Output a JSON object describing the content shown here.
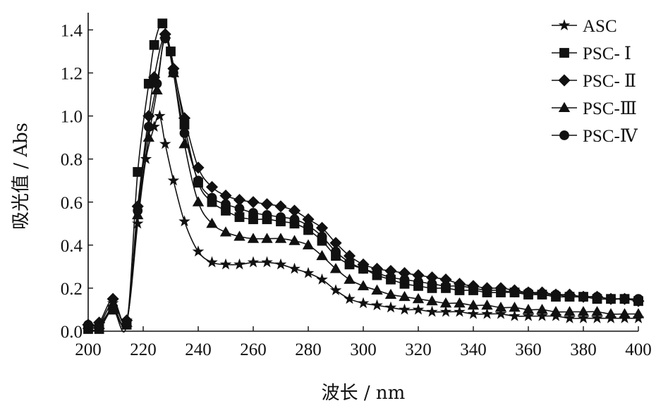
{
  "chart_data": {
    "type": "line",
    "xlabel": "波长 / nm",
    "ylabel": "吸光值 / Abs",
    "xlim": [
      200,
      400
    ],
    "ylim": [
      0,
      1.48
    ],
    "xticks": [
      200,
      220,
      240,
      260,
      280,
      300,
      320,
      340,
      360,
      380,
      400
    ],
    "yticks": [
      0.0,
      0.2,
      0.4,
      0.6,
      0.8,
      1.0,
      1.2,
      1.4
    ],
    "ytick_labels": [
      "0.0",
      "0.2",
      "0.4",
      "0.6",
      "0.8",
      "1.0",
      "1.2",
      "1.4"
    ],
    "legend_position": "top-right",
    "grid": false,
    "series": [
      {
        "name": "ASC",
        "marker": "star",
        "x": [
          200,
          204,
          209,
          214,
          218,
          221,
          224,
          226,
          228,
          231,
          235,
          240,
          245,
          250,
          255,
          260,
          265,
          270,
          275,
          280,
          285,
          290,
          295,
          300,
          305,
          310,
          315,
          320,
          325,
          330,
          335,
          340,
          345,
          350,
          355,
          360,
          365,
          370,
          375,
          380,
          385,
          390,
          395,
          400
        ],
        "y": [
          0.02,
          0.03,
          0.13,
          0.05,
          0.5,
          0.8,
          0.95,
          1.0,
          0.87,
          0.7,
          0.51,
          0.37,
          0.32,
          0.31,
          0.31,
          0.32,
          0.32,
          0.31,
          0.29,
          0.27,
          0.24,
          0.19,
          0.15,
          0.13,
          0.12,
          0.11,
          0.1,
          0.1,
          0.09,
          0.09,
          0.09,
          0.08,
          0.08,
          0.08,
          0.07,
          0.07,
          0.07,
          0.07,
          0.06,
          0.06,
          0.06,
          0.06,
          0.06,
          0.06
        ]
      },
      {
        "name": "PSC- Ⅰ",
        "marker": "square",
        "x": [
          200,
          204,
          209,
          214,
          218,
          222,
          224,
          227,
          230,
          235,
          240,
          245,
          250,
          255,
          260,
          265,
          270,
          275,
          280,
          285,
          290,
          295,
          300,
          305,
          310,
          315,
          320,
          325,
          330,
          335,
          340,
          345,
          350,
          355,
          360,
          365,
          370,
          375,
          380,
          385,
          390,
          395,
          400
        ],
        "y": [
          0.01,
          0.01,
          0.1,
          0.03,
          0.74,
          1.15,
          1.33,
          1.43,
          1.3,
          0.96,
          0.69,
          0.6,
          0.56,
          0.53,
          0.52,
          0.52,
          0.51,
          0.5,
          0.47,
          0.42,
          0.35,
          0.31,
          0.29,
          0.26,
          0.24,
          0.22,
          0.21,
          0.2,
          0.2,
          0.19,
          0.19,
          0.18,
          0.18,
          0.18,
          0.17,
          0.17,
          0.16,
          0.16,
          0.16,
          0.15,
          0.15,
          0.15,
          0.14
        ]
      },
      {
        "name": "PSC- Ⅱ",
        "marker": "diamond",
        "x": [
          200,
          204,
          209,
          214,
          218,
          222,
          224,
          228,
          231,
          235,
          240,
          245,
          250,
          255,
          260,
          265,
          270,
          275,
          280,
          285,
          290,
          295,
          300,
          305,
          310,
          315,
          320,
          325,
          330,
          335,
          340,
          345,
          350,
          355,
          360,
          365,
          370,
          375,
          380,
          385,
          390,
          395,
          400
        ],
        "y": [
          0.03,
          0.04,
          0.15,
          0.05,
          0.58,
          1.0,
          1.18,
          1.38,
          1.22,
          0.99,
          0.76,
          0.67,
          0.63,
          0.61,
          0.6,
          0.59,
          0.58,
          0.56,
          0.52,
          0.48,
          0.41,
          0.35,
          0.31,
          0.29,
          0.28,
          0.27,
          0.26,
          0.25,
          0.24,
          0.22,
          0.21,
          0.2,
          0.2,
          0.19,
          0.18,
          0.18,
          0.17,
          0.17,
          0.16,
          0.16,
          0.15,
          0.15,
          0.14
        ]
      },
      {
        "name": "PSC-Ⅲ",
        "marker": "triangle",
        "x": [
          200,
          204,
          209,
          214,
          218,
          222,
          225,
          228,
          231,
          235,
          240,
          245,
          250,
          255,
          260,
          265,
          270,
          275,
          280,
          285,
          290,
          295,
          300,
          305,
          310,
          315,
          320,
          325,
          330,
          335,
          340,
          345,
          350,
          355,
          360,
          365,
          370,
          375,
          380,
          385,
          390,
          395,
          400
        ],
        "y": [
          0.03,
          0.03,
          0.1,
          0.04,
          0.54,
          0.9,
          1.12,
          1.38,
          1.2,
          0.87,
          0.6,
          0.5,
          0.46,
          0.44,
          0.43,
          0.43,
          0.43,
          0.42,
          0.4,
          0.35,
          0.29,
          0.24,
          0.21,
          0.19,
          0.17,
          0.16,
          0.15,
          0.14,
          0.13,
          0.13,
          0.12,
          0.12,
          0.11,
          0.11,
          0.1,
          0.1,
          0.09,
          0.09,
          0.09,
          0.09,
          0.08,
          0.08,
          0.08
        ]
      },
      {
        "name": "PSC-Ⅳ",
        "marker": "circle",
        "x": [
          200,
          204,
          209,
          214,
          218,
          222,
          225,
          228,
          231,
          235,
          240,
          245,
          250,
          255,
          260,
          265,
          270,
          275,
          280,
          285,
          290,
          295,
          300,
          305,
          310,
          315,
          320,
          325,
          330,
          335,
          340,
          345,
          350,
          355,
          360,
          365,
          370,
          375,
          380,
          385,
          390,
          395,
          400
        ],
        "y": [
          0.03,
          0.02,
          0.11,
          0.04,
          0.56,
          0.95,
          1.15,
          1.36,
          1.2,
          0.92,
          0.7,
          0.62,
          0.59,
          0.57,
          0.55,
          0.54,
          0.53,
          0.52,
          0.49,
          0.44,
          0.37,
          0.32,
          0.29,
          0.27,
          0.25,
          0.24,
          0.23,
          0.22,
          0.21,
          0.21,
          0.2,
          0.19,
          0.19,
          0.18,
          0.18,
          0.17,
          0.17,
          0.16,
          0.16,
          0.16,
          0.15,
          0.15,
          0.15
        ]
      }
    ]
  }
}
